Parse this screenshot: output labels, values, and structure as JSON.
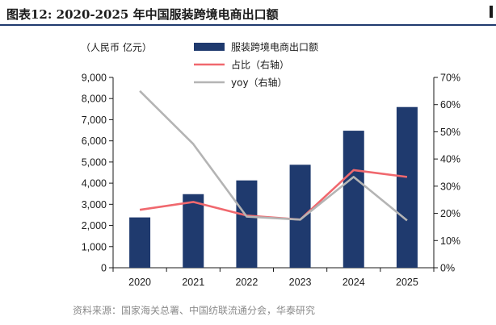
{
  "title": "图表12:  2020-2025 年中国服装跨境电商出口额",
  "source": "资料来源：国家海关总署、中国纺联流通分会，华泰研究",
  "chart_data": {
    "type": "bar",
    "unit_label": "（人民币 亿元）",
    "categories": [
      "2020",
      "2021",
      "2022",
      "2023",
      "2024",
      "2025"
    ],
    "ylim": [
      0,
      9000
    ],
    "y_ticks": [
      "0",
      "1,000",
      "2,000",
      "3,000",
      "4,000",
      "5,000",
      "6,000",
      "7,000",
      "8,000",
      "9,000"
    ],
    "y2lim": [
      0,
      70
    ],
    "y2_ticks": [
      "0%",
      "10%",
      "20%",
      "30%",
      "40%",
      "50%",
      "60%",
      "70%"
    ],
    "series": [
      {
        "name": "服装跨境电商出口额",
        "type": "bar",
        "axis": "left",
        "color": "#1f3a6e",
        "values": [
          2380,
          3480,
          4130,
          4870,
          6480,
          7600
        ]
      },
      {
        "name": "占比（右轴）",
        "type": "line",
        "axis": "right",
        "color": "#f0686e",
        "values": [
          21.3,
          24.2,
          19.2,
          17.7,
          35.9,
          33.4
        ]
      },
      {
        "name": "yoy（右轴）",
        "type": "line",
        "axis": "right",
        "color": "#b4b4b4",
        "values": [
          65,
          45.5,
          18.8,
          17.7,
          33.4,
          17.4
        ]
      }
    ],
    "legend_position": "top-center",
    "grid": false
  }
}
